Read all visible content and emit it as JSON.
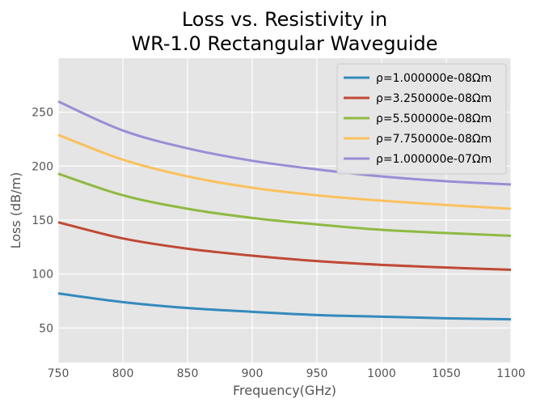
{
  "chart_data": {
    "type": "line",
    "title_lines": [
      "Loss vs. Resistivity in",
      "WR-1.0 Rectangular Waveguide"
    ],
    "xlabel": "Frequency(GHz)",
    "ylabel": "Loss (dB/m)",
    "xlim": [
      750,
      1100
    ],
    "ylim": [
      18,
      300
    ],
    "x_ticks": [
      750,
      800,
      850,
      900,
      950,
      1000,
      1050,
      1100
    ],
    "y_ticks": [
      50,
      100,
      150,
      200,
      250
    ],
    "grid": true,
    "legend_placement": "top-right",
    "x": [
      750,
      800,
      850,
      900,
      950,
      1000,
      1050,
      1100
    ],
    "series": [
      {
        "name": "ρ=1.000000e-08Ωm",
        "color": "#348abd",
        "values": [
          82,
          74,
          68.5,
          65,
          62,
          60.5,
          59,
          58
        ]
      },
      {
        "name": "ρ=3.250000e-08Ωm",
        "color": "#c04934",
        "values": [
          148,
          133,
          123.5,
          117,
          112,
          108.5,
          106,
          104
        ]
      },
      {
        "name": "ρ=5.500000e-08Ωm",
        "color": "#8eba42",
        "values": [
          193,
          173,
          160.5,
          152,
          146,
          141,
          138,
          135.5
        ]
      },
      {
        "name": "ρ=7.750000e-08Ωm",
        "color": "#fbc15e",
        "values": [
          229,
          206,
          190.5,
          180,
          173,
          168,
          164,
          160.5
        ]
      },
      {
        "name": "ρ=1.000000e-07Ωm",
        "color": "#988ed5",
        "values": [
          260,
          233,
          216.5,
          205,
          197,
          190.5,
          186,
          183
        ]
      }
    ]
  }
}
